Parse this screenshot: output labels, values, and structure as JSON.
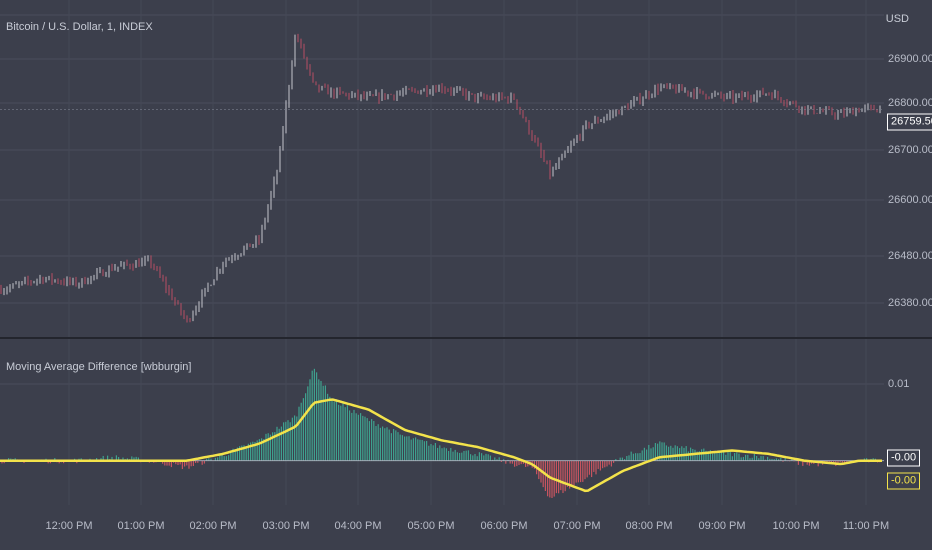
{
  "symbol_title": "Bitcoin / U.S. Dollar, 1, INDEX",
  "currency": "USD",
  "indicator_title": "Moving Average Difference [wbburgin]",
  "price_axis": [
    "26900.00",
    "26800.00",
    "26700.00",
    "26600.00",
    "26480.00",
    "26380.00"
  ],
  "indicator_axis": [
    "0.01"
  ],
  "time_axis": [
    "12:00 PM",
    "01:00 PM",
    "02:00 PM",
    "03:00 PM",
    "04:00 PM",
    "05:00 PM",
    "06:00 PM",
    "07:00 PM",
    "08:00 PM",
    "09:00 PM",
    "10:00 PM",
    "11:00 PM"
  ],
  "last_price": "26759.50",
  "indicator_values": [
    "-0.00",
    "-0.00"
  ],
  "colors": {
    "up": "#e8e8ee",
    "down": "#d7536a",
    "hist_up": "#3fb39a",
    "hist_down": "#e05863",
    "ma": "#f3e34b",
    "bg": "#3c3f4c"
  },
  "chart_data": [
    {
      "type": "line",
      "x": [
        "11:30 AM",
        "12:00 PM",
        "12:30 PM",
        "01:00 PM",
        "01:30 PM",
        "02:00 PM",
        "02:30 PM",
        "03:00 PM",
        "03:15 PM",
        "03:30 PM",
        "03:45 PM",
        "04:00 PM",
        "04:30 PM",
        "05:00 PM",
        "05:30 PM",
        "06:00 PM",
        "06:30 PM",
        "07:00 PM",
        "07:30 PM",
        "08:00 PM",
        "08:30 PM",
        "09:00 PM",
        "09:30 PM",
        "10:00 PM",
        "10:30 PM",
        "11:00 PM",
        "11:15 PM"
      ],
      "series": [
        {
          "values": [
            26430,
            26450,
            26440,
            26470,
            26480,
            26370,
            26480,
            26520,
            26650,
            26900,
            26800,
            26790,
            26780,
            26790,
            26800,
            26780,
            26780,
            26640,
            26730,
            26760,
            26800,
            26790,
            26780,
            26790,
            26760,
            26750,
            26760
          ]
        }
      ],
      "ylabel": "USD",
      "ylim": [
        26340,
        26960
      ]
    },
    {
      "type": "bar",
      "x": [
        "11:30 AM",
        "12:00 PM",
        "12:30 PM",
        "01:00 PM",
        "01:30 PM",
        "02:00 PM",
        "02:30 PM",
        "03:00 PM",
        "03:30 PM",
        "03:45 PM",
        "04:00 PM",
        "04:30 PM",
        "05:00 PM",
        "05:30 PM",
        "06:00 PM",
        "06:30 PM",
        "06:45 PM",
        "07:00 PM",
        "07:30 PM",
        "08:00 PM",
        "08:30 PM",
        "09:00 PM",
        "09:30 PM",
        "10:00 PM",
        "10:30 PM",
        "11:00 PM",
        "11:15 PM"
      ],
      "series": [
        {
          "values": [
            0,
            0,
            0,
            0.0005,
            0,
            -0.001,
            0.0008,
            0.003,
            0.0065,
            0.0135,
            0.009,
            0.006,
            0.0035,
            0.002,
            0.001,
            -0.0005,
            -0.001,
            -0.0055,
            -0.0025,
            0.0005,
            0.0025,
            0.0015,
            0.001,
            0.0005,
            -0.0005,
            -0.0005,
            0
          ]
        },
        {
          "values": [
            0,
            0,
            0,
            0,
            0,
            0,
            0.001,
            0.0025,
            0.005,
            0.0085,
            0.009,
            0.0075,
            0.0045,
            0.003,
            0.002,
            0.0005,
            -0.0005,
            -0.0025,
            -0.0045,
            -0.0015,
            0.0005,
            0.001,
            0.0015,
            0.001,
            0,
            -0.0005,
            0
          ]
        }
      ],
      "ylim": [
        -0.0065,
        0.0155
      ]
    }
  ]
}
